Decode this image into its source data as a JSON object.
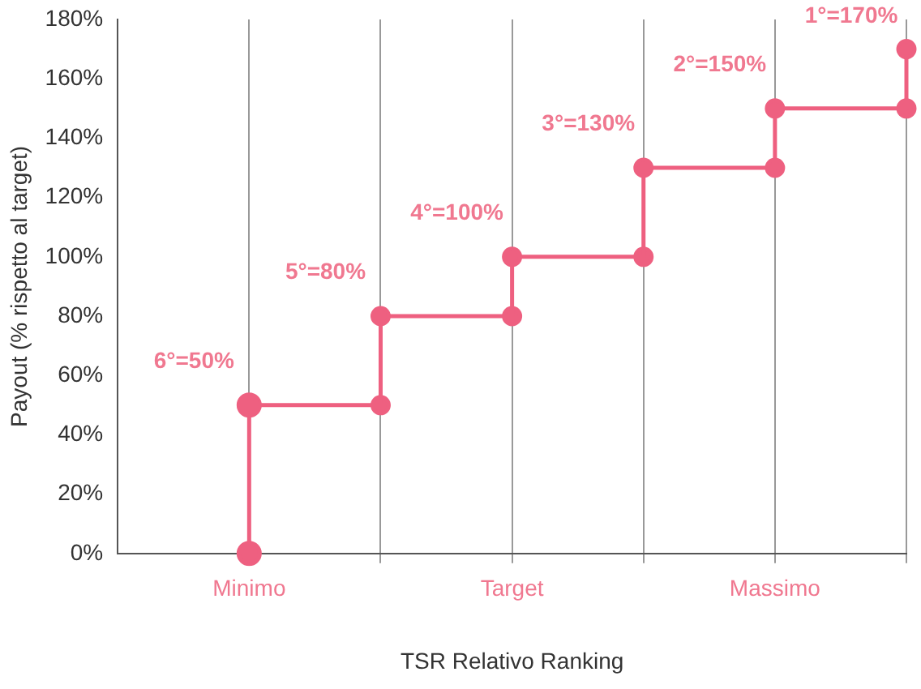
{
  "chart_data": {
    "type": "step",
    "xlabel": "TSR Relativo Ranking",
    "ylabel": "Payout (% rispetto al target)",
    "categories": [
      "Minimo",
      null,
      "Target",
      null,
      "Massimo",
      null
    ],
    "series": [
      {
        "color": "#ee6080",
        "values": [
          50,
          80,
          100,
          130,
          150,
          170
        ]
      },
      {
        "type": "line",
        "color": "#ee6080",
        "x": [
          "Minimo",
          "Minimo"
        ],
        "values": [
          0,
          50
        ]
      },
      {
        "type": "scatter",
        "color": "#ee6080",
        "values": [
          null,
          50,
          80,
          100,
          130,
          150
        ]
      }
    ],
    "ylim": [
      0,
      180
    ],
    "yticks": [
      {
        "value": 0,
        "label": "0%"
      },
      {
        "value": 20,
        "label": "20%"
      },
      {
        "value": 40,
        "label": "40%"
      },
      {
        "value": 60,
        "label": "60%"
      },
      {
        "value": 80,
        "label": "80%"
      },
      {
        "value": 100,
        "label": "100%"
      },
      {
        "value": 120,
        "label": "120%"
      },
      {
        "value": 140,
        "label": "140%"
      },
      {
        "value": 160,
        "label": "160%"
      },
      {
        "value": 180,
        "label": "180%"
      }
    ],
    "annotations": [
      "6°=50%",
      "5°=80%",
      "4°=100%",
      "3°=130%",
      "2°=150%",
      "1°=170%"
    ],
    "grid": "x",
    "legend": false,
    "marker": "circle",
    "line_style": "solid"
  }
}
